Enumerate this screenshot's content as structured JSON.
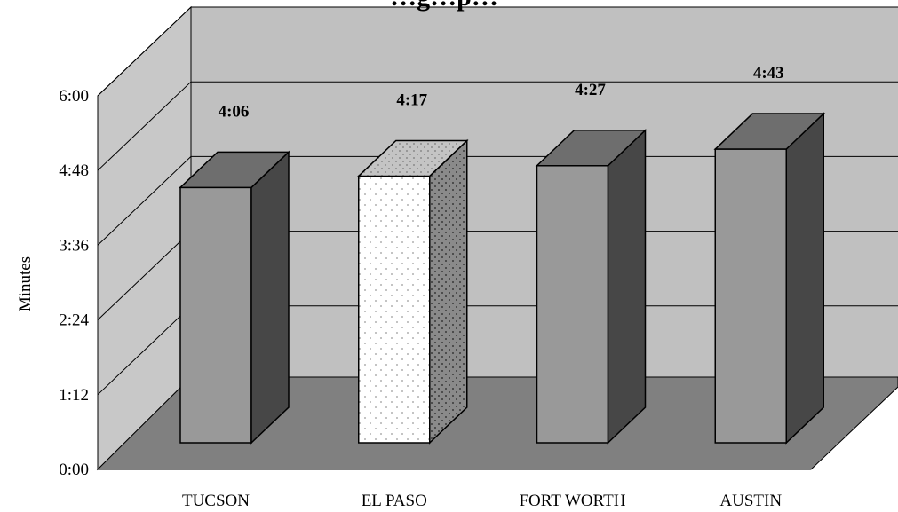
{
  "chart_data": {
    "type": "bar",
    "title": "…g…p…",
    "ylabel": "Minutes",
    "xlabel": "",
    "categories": [
      "TUCSON",
      "EL PASO",
      "FORT WORTH",
      "AUSTIN"
    ],
    "values": [
      4.1,
      4.2833,
      4.45,
      4.7167
    ],
    "value_labels": [
      "4:06",
      "4:17",
      "4:27",
      "4:43"
    ],
    "y_ticks": [
      "0:00",
      "1:12",
      "2:24",
      "3:36",
      "4:48",
      "6:00"
    ],
    "ylim": [
      0,
      6
    ],
    "highlight_category": "EL PASO",
    "grid": true,
    "three_d": true,
    "colors": {
      "bar_front": "#999999",
      "bar_side": "#474747",
      "bar_top": "#6e6e6e",
      "highlight_front": "#ffffff",
      "highlight_side": "#8a8a8a",
      "highlight_top": "#bdbdbd",
      "back_wall": "#c0c0c0",
      "side_wall": "#c8c8c8",
      "floor": "#808080"
    }
  }
}
